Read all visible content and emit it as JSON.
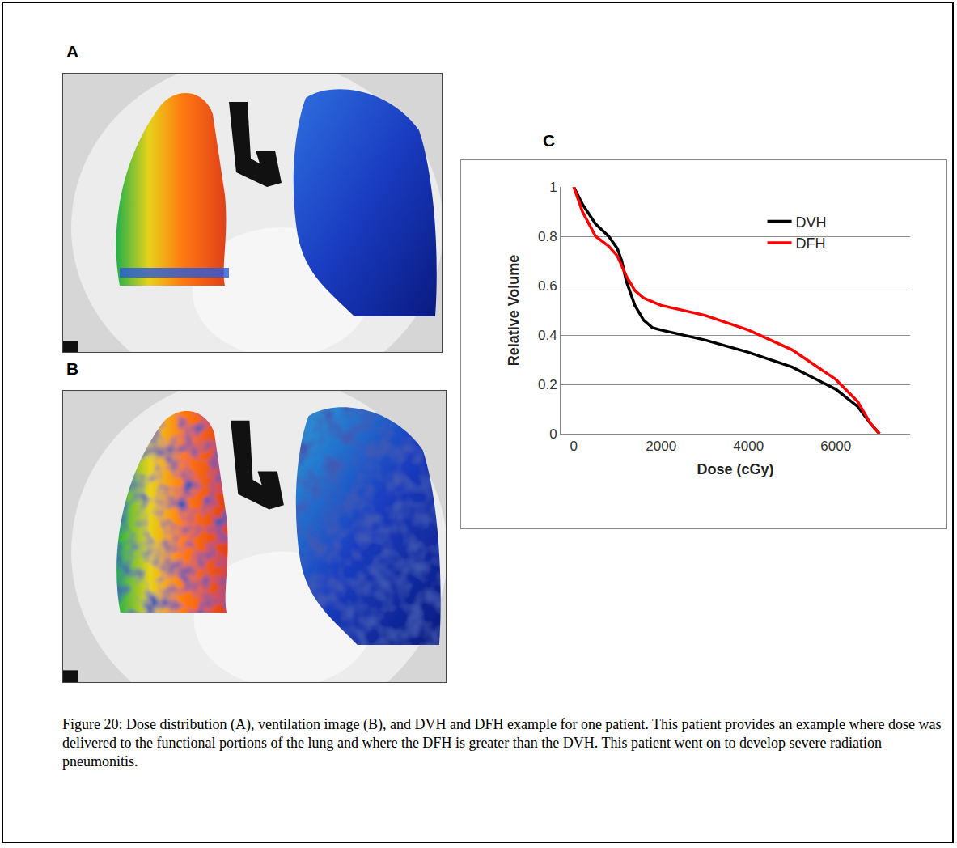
{
  "figure": {
    "panel_labels": [
      "A",
      "B",
      "C"
    ],
    "caption": "Figure 20: Dose distribution (A), ventilation image (B), and DVH and DFH example for one patient. This patient provides an example where dose was delivered to the functional portions of the lung and where the DFH is greater than the DVH. This patient went on to develop severe radiation pneumonitis."
  },
  "chart_data": {
    "type": "line",
    "x_label": "Dose (cGy)",
    "y_label": "Relative Volume",
    "x": [
      0,
      200,
      500,
      800,
      1000,
      1100,
      1200,
      1400,
      1600,
      1800,
      2000,
      3000,
      4000,
      5000,
      6000,
      6500,
      6800,
      7000
    ],
    "series": [
      {
        "name": "DVH",
        "color": "#000000",
        "line_style": "solid",
        "values": [
          1.0,
          0.93,
          0.85,
          0.8,
          0.75,
          0.7,
          0.62,
          0.52,
          0.46,
          0.43,
          0.42,
          0.38,
          0.33,
          0.27,
          0.18,
          0.11,
          0.04,
          0.0
        ]
      },
      {
        "name": "DFH",
        "color": "#ff0000",
        "line_style": "solid",
        "values": [
          1.0,
          0.9,
          0.8,
          0.76,
          0.72,
          0.68,
          0.64,
          0.58,
          0.55,
          0.535,
          0.52,
          0.48,
          0.42,
          0.34,
          0.22,
          0.13,
          0.04,
          0.0
        ]
      }
    ],
    "xlim": [
      -300,
      7700
    ],
    "xticks": [
      0,
      2000,
      4000,
      6000
    ],
    "ylim": [
      0,
      1
    ],
    "yticks": [
      0,
      0.2,
      0.4,
      0.6,
      0.8,
      1
    ],
    "grid": true,
    "legend": "top right"
  }
}
